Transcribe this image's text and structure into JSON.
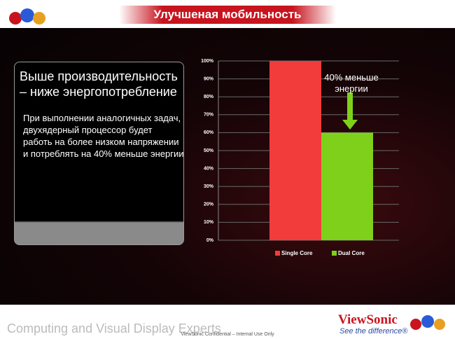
{
  "slide": {
    "title": "Улучшеная мобильность",
    "heading_lines": [
      "Выше производительность",
      "– ниже энергопотребление"
    ],
    "body_lines": [
      "При выполнении аналогичных задач,",
      "двухядерный процессор будет",
      "работь на более низком напряжении",
      "и потреблять на 40% меньше энергии"
    ],
    "footer_tagline": "Computing and Visual Display Experts",
    "footer_confidential": "ViewSonic Confidential – Internal Use Only",
    "brand": "ViewSonic",
    "brand_slogan": "See the difference®"
  },
  "chart_data": {
    "type": "bar",
    "categories": [
      null
    ],
    "series": [
      {
        "name": "Single Core",
        "color": "#f23c3c",
        "values": [
          100
        ]
      },
      {
        "name": "Dual Core",
        "color": "#7fd01a",
        "values": [
          60
        ]
      }
    ],
    "ylim": [
      0,
      100
    ],
    "yticks": [
      {
        "value": 0,
        "label": "0%"
      },
      {
        "value": 10,
        "label": "10%"
      },
      {
        "value": 20,
        "label": "20%"
      },
      {
        "value": 30,
        "label": "30%"
      },
      {
        "value": 40,
        "label": "40%"
      },
      {
        "value": 50,
        "label": "50%"
      },
      {
        "value": 60,
        "label": "60%"
      },
      {
        "value": 70,
        "label": "70%"
      },
      {
        "value": 80,
        "label": "80%"
      },
      {
        "value": 90,
        "label": "90%"
      },
      {
        "value": 100,
        "label": "100%"
      }
    ],
    "grid": true,
    "legend": "bottom",
    "annotation": "40% меньше энергии",
    "annotation_color": "#7fd01a"
  }
}
